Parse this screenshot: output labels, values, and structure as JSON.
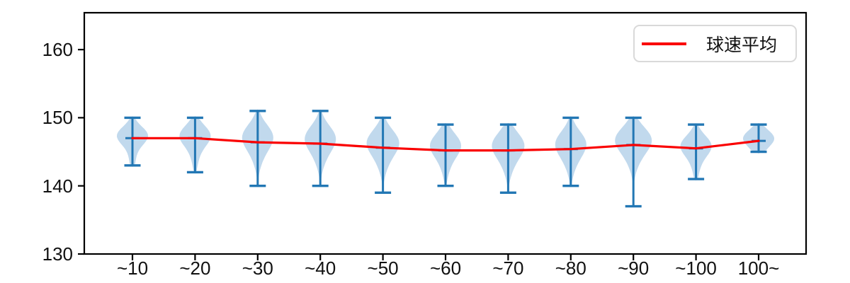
{
  "figure": {
    "background": "#ffffff"
  },
  "legend": {
    "label": "球速平均"
  },
  "chart_data": {
    "type": "violin",
    "title": "",
    "xlabel": "",
    "ylabel": "",
    "grid": false,
    "legend_position": "upper right",
    "categories": [
      "~10",
      "~20",
      "~30",
      "~40",
      "~50",
      "~60",
      "~70",
      "~80",
      "~90",
      "~100",
      "100~"
    ],
    "y_tick_labels": [
      "160",
      "150",
      "140",
      "130"
    ],
    "y_ticks": [
      160,
      150,
      140,
      130
    ],
    "ylim": [
      130,
      165.5
    ],
    "violins": [
      {
        "category": "~10",
        "min": 143,
        "max": 150,
        "mean": 147.0
      },
      {
        "category": "~20",
        "min": 142,
        "max": 150,
        "mean": 147.0
      },
      {
        "category": "~30",
        "min": 140,
        "max": 151,
        "mean": 146.4
      },
      {
        "category": "~40",
        "min": 140,
        "max": 151,
        "mean": 146.2
      },
      {
        "category": "~50",
        "min": 139,
        "max": 150,
        "mean": 145.6
      },
      {
        "category": "~60",
        "min": 140,
        "max": 149,
        "mean": 145.2
      },
      {
        "category": "~70",
        "min": 139,
        "max": 149,
        "mean": 145.2
      },
      {
        "category": "~80",
        "min": 140,
        "max": 150,
        "mean": 145.4
      },
      {
        "category": "~90",
        "min": 137,
        "max": 150,
        "mean": 146.0
      },
      {
        "category": "~100",
        "min": 141,
        "max": 149,
        "mean": 145.5
      },
      {
        "category": "100~",
        "min": 145,
        "max": 149,
        "mean": 146.6
      }
    ],
    "mean_line": {
      "name": "球速平均",
      "values": [
        147.0,
        147.0,
        146.4,
        146.2,
        145.6,
        145.2,
        145.2,
        145.4,
        146.0,
        145.5,
        146.6
      ]
    },
    "colors": {
      "violin_fill": "#c1d9ed",
      "violin_line": "#2277b4",
      "mean_line": "#fa0000",
      "axis": "#000000",
      "text": "#111111",
      "legend_border": "#d9d9d9"
    }
  }
}
